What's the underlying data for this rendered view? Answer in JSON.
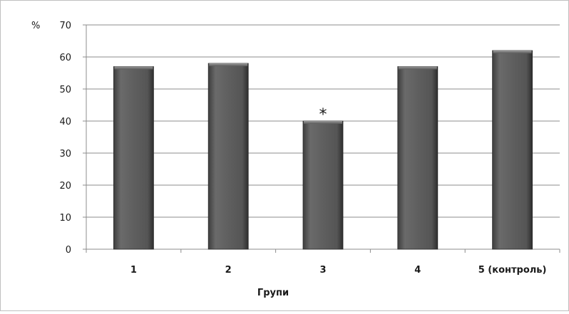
{
  "chart_data": {
    "type": "bar",
    "categories": [
      "1",
      "2",
      "3",
      "4",
      "5 (контроль)"
    ],
    "values": [
      57,
      58,
      40,
      57,
      62
    ],
    "title": "",
    "xlabel": "Групи",
    "ylabel": "%",
    "ylim": [
      0,
      70
    ],
    "yticks": [
      0,
      10,
      20,
      30,
      40,
      50,
      60,
      70
    ],
    "grid": true,
    "legend": "none",
    "bar_color": "#5f5f5f",
    "annotations": [
      {
        "category": "3",
        "text": "*"
      }
    ]
  }
}
